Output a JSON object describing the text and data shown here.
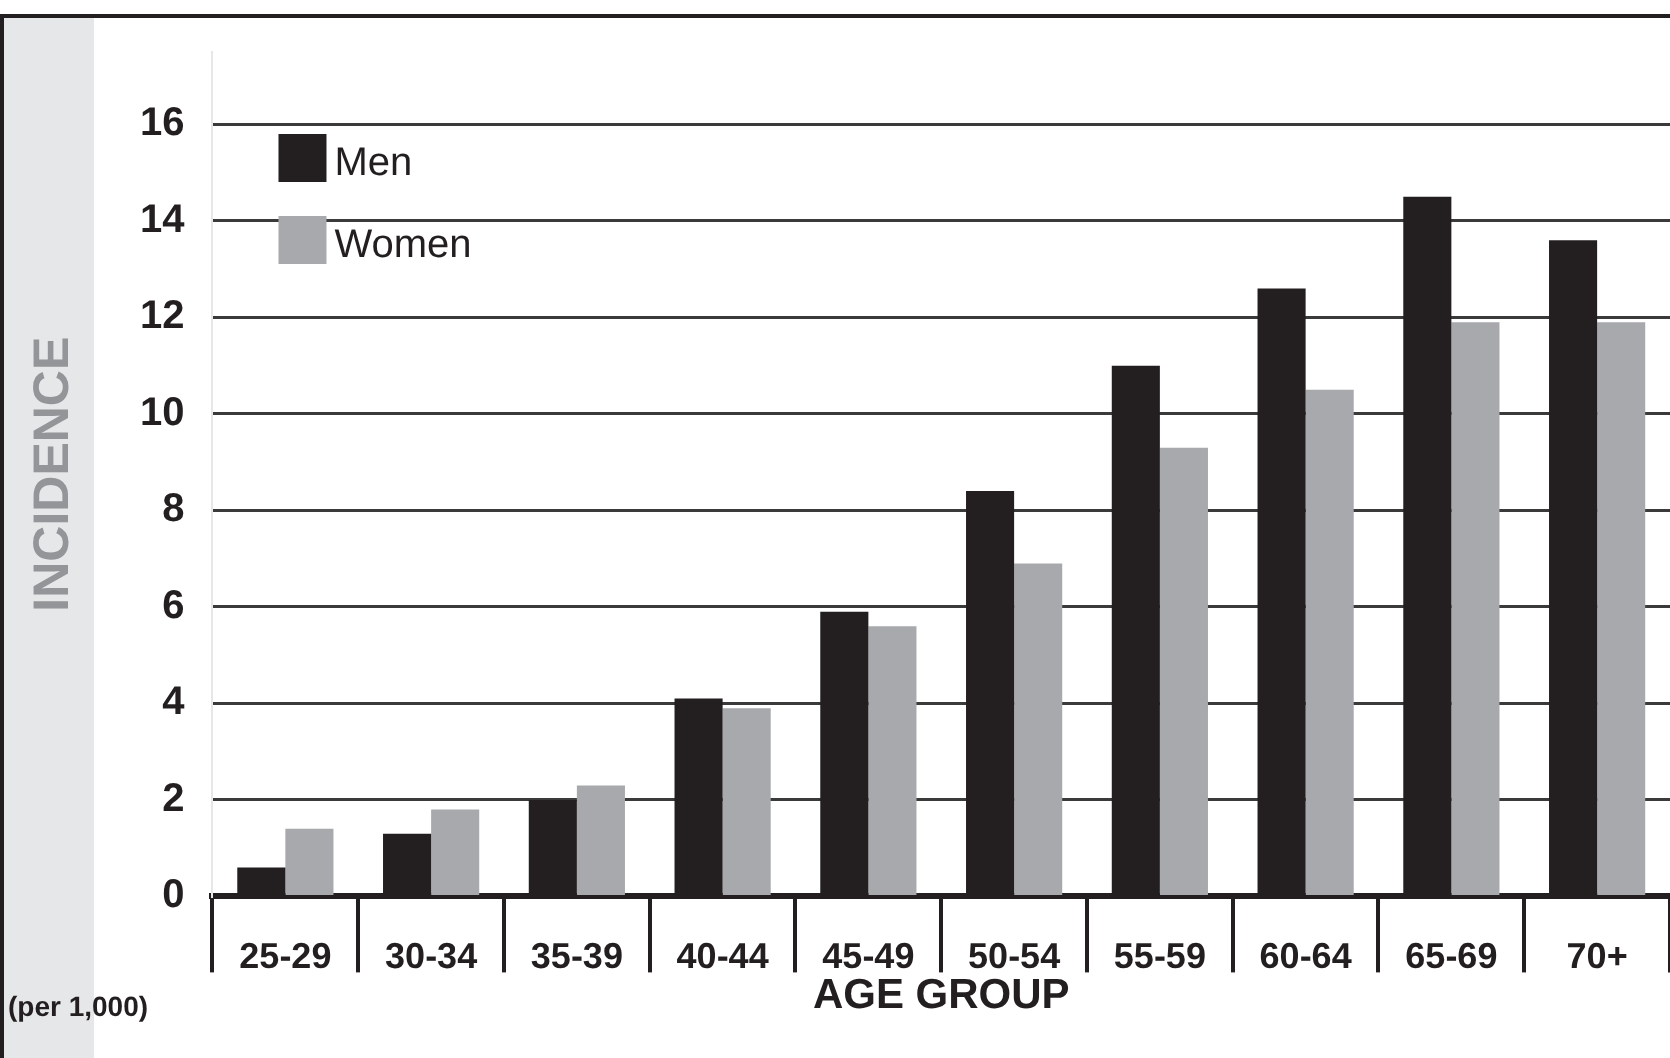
{
  "chart_data": {
    "type": "bar",
    "xlabel": "AGE GROUP",
    "ylabel": "INCIDENCE",
    "categories": [
      "25-29",
      "30-34",
      "35-39",
      "40-44",
      "45-49",
      "50-54",
      "55-59",
      "60-64",
      "65-69",
      "70+"
    ],
    "series": [
      {
        "name": "Men",
        "color": "#231f20",
        "values": [
          0.6,
          1.3,
          2.0,
          4.1,
          5.9,
          8.4,
          11.0,
          12.6,
          14.5,
          13.6
        ]
      },
      {
        "name": "Women",
        "color": "#a7a9ac",
        "values": [
          1.4,
          1.8,
          2.3,
          3.9,
          5.6,
          6.9,
          9.3,
          10.5,
          11.9,
          11.9
        ]
      }
    ],
    "ylim": [
      0,
      17.5
    ],
    "yticks": [
      0,
      2,
      4,
      6,
      8,
      10,
      12,
      14,
      16
    ],
    "grid": "y",
    "legend": "top left",
    "annotations": [
      "(per 1,000)"
    ]
  }
}
